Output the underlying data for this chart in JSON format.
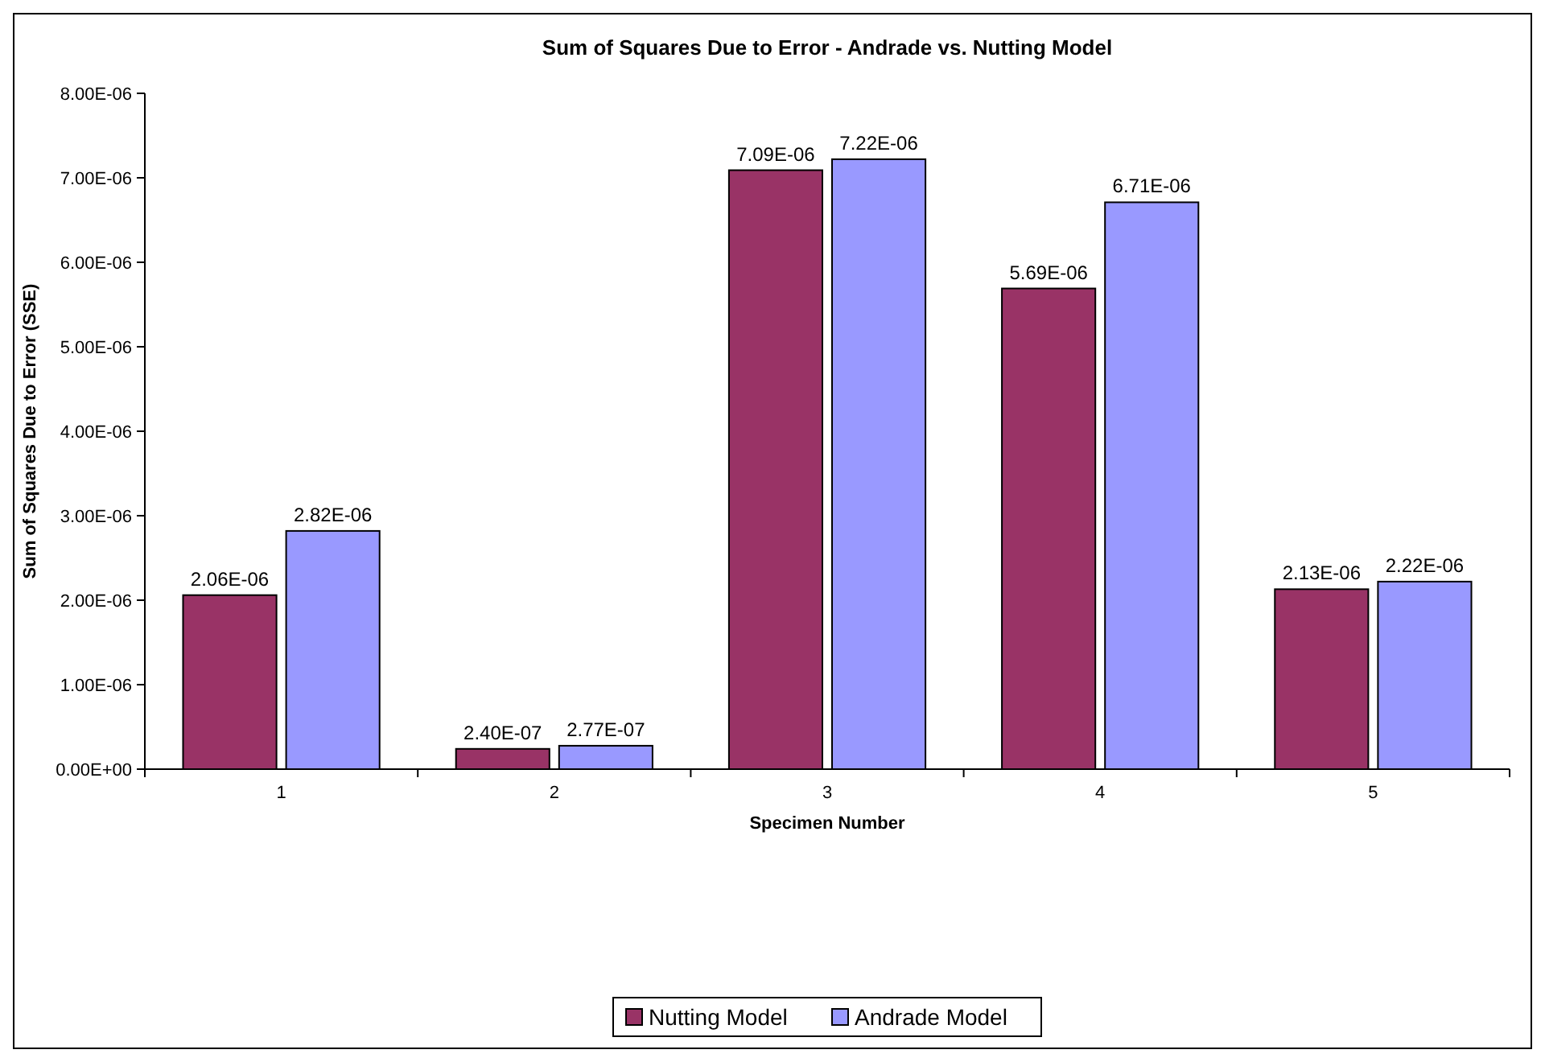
{
  "chart_data": {
    "type": "bar",
    "title": "Sum of Squares Due to Error - Andrade vs. Nutting Model",
    "xlabel": "Specimen Number",
    "ylabel": "Sum of Squares Due to Error (SSE)",
    "categories": [
      "1",
      "2",
      "3",
      "4",
      "5"
    ],
    "series": [
      {
        "name": "Nutting Model",
        "color": "#993366",
        "values": [
          2.06e-06,
          2.4e-07,
          7.09e-06,
          5.69e-06,
          2.13e-06
        ],
        "value_labels": [
          "2.06E-06",
          "2.40E-07",
          "7.09E-06",
          "5.69E-06",
          "2.13E-06"
        ]
      },
      {
        "name": "Andrade Model",
        "color": "#9999ff",
        "values": [
          2.82e-06,
          2.77e-07,
          7.22e-06,
          6.71e-06,
          2.22e-06
        ],
        "value_labels": [
          "2.82E-06",
          "2.77E-07",
          "7.22E-06",
          "6.71E-06",
          "2.22E-06"
        ]
      }
    ],
    "ylim": [
      0,
      8e-06
    ],
    "yticks": [
      {
        "value": 0,
        "label": "0.00E+00"
      },
      {
        "value": 1e-06,
        "label": "1.00E-06"
      },
      {
        "value": 2e-06,
        "label": "2.00E-06"
      },
      {
        "value": 3e-06,
        "label": "3.00E-06"
      },
      {
        "value": 4e-06,
        "label": "4.00E-06"
      },
      {
        "value": 5e-06,
        "label": "5.00E-06"
      },
      {
        "value": 6e-06,
        "label": "6.00E-06"
      },
      {
        "value": 7e-06,
        "label": "7.00E-06"
      },
      {
        "value": 8e-06,
        "label": "8.00E-06"
      }
    ],
    "grid": false,
    "legend": "bottom"
  }
}
